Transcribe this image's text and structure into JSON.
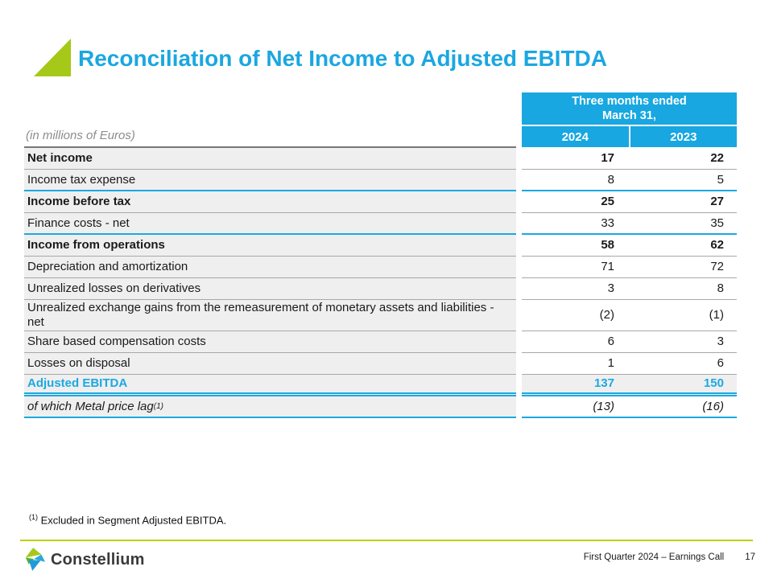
{
  "slide": {
    "title": "Reconciliation of Net Income to Adjusted EBITDA",
    "units_note": "(in millions of Euros)",
    "footnote_marker": "(1)",
    "footnote_text": "Excluded in Segment Adjusted EBITDA."
  },
  "table": {
    "header": {
      "period_line1": "Three months ended",
      "period_line2": "March 31,",
      "col_2024": "2024",
      "col_2023": "2023"
    },
    "rows": [
      {
        "label": "Net income",
        "v2024": "17",
        "v2023": "22",
        "emphasis": "bold",
        "rule_below": "gray",
        "tall": false
      },
      {
        "label": "Income tax expense",
        "v2024": "8",
        "v2023": "5",
        "emphasis": "normal",
        "rule_below": "blue",
        "tall": false
      },
      {
        "label": "Income before tax",
        "v2024": "25",
        "v2023": "27",
        "emphasis": "bold",
        "rule_below": "gray",
        "tall": false
      },
      {
        "label": "Finance costs - net",
        "v2024": "33",
        "v2023": "35",
        "emphasis": "normal",
        "rule_below": "blue",
        "tall": false
      },
      {
        "label": "Income from operations",
        "v2024": "58",
        "v2023": "62",
        "emphasis": "bold",
        "rule_below": "gray",
        "tall": false
      },
      {
        "label": "Depreciation and amortization",
        "v2024": "71",
        "v2023": "72",
        "emphasis": "normal",
        "rule_below": "gray",
        "tall": false
      },
      {
        "label": "Unrealized losses on derivatives",
        "v2024": "3",
        "v2023": "8",
        "emphasis": "normal",
        "rule_below": "gray",
        "tall": false
      },
      {
        "label": "Unrealized exchange gains from the remeasurement of monetary assets and liabilities - net",
        "v2024": "(2)",
        "v2023": "(1)",
        "emphasis": "normal",
        "rule_below": "gray",
        "tall": true
      },
      {
        "label": "Share based compensation costs",
        "v2024": "6",
        "v2023": "3",
        "emphasis": "normal",
        "rule_below": "gray",
        "tall": false
      },
      {
        "label": "Losses on disposal",
        "v2024": "1",
        "v2023": "6",
        "emphasis": "normal",
        "rule_below": "gray",
        "tall": false
      },
      {
        "label": "Adjusted EBITDA",
        "v2024": "137",
        "v2023": "150",
        "emphasis": "accent",
        "rule_below": "double",
        "tall": false
      },
      {
        "label": "of which Metal price lag",
        "label_sup": "(1)",
        "v2024": "(13)",
        "v2023": "(16)",
        "emphasis": "italic",
        "rule_below": "blue",
        "tall": false
      }
    ]
  },
  "footer": {
    "brand": "Constellium",
    "caption": "First Quarter 2024 – Earnings Call",
    "page_number": "17"
  },
  "colors": {
    "accent_cyan": "#18A7E0",
    "title_cyan": "#1BA7E0",
    "brand_lime": "#A6C818",
    "footer_line_lime": "#BCCF00",
    "row_gray": "#EFEFEF",
    "separator_gray": "#A8A8A8"
  }
}
